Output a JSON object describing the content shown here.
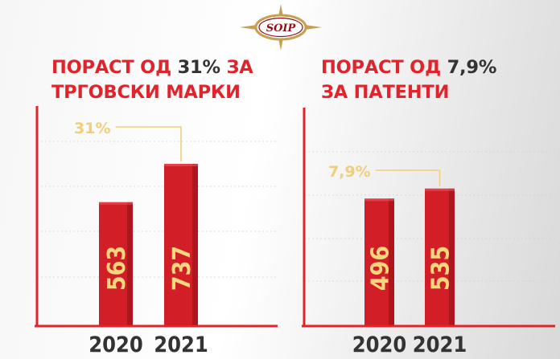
{
  "logo": {
    "text": "SOIP"
  },
  "colors": {
    "accent": "#e1232b",
    "bar": "#d21e26",
    "bar_dark": "#8e1116",
    "annotation": "#f0cf7a",
    "value_label": "#f7d77e",
    "dark_text": "#333333"
  },
  "chart_data": [
    {
      "type": "bar",
      "title": {
        "line1_prefix": "ПОРАСТ ОД ",
        "percent": "31%",
        "line1_suffix": " ЗА",
        "line2": "ТРГОВСКИ МАРКИ"
      },
      "categories": [
        "2020",
        "2021"
      ],
      "values": [
        563,
        737
      ],
      "value_labels": [
        "563",
        "737"
      ],
      "growth_label": "31%",
      "ylim": [
        0,
        1000
      ],
      "grid": true
    },
    {
      "type": "bar",
      "title": {
        "line1_prefix": "ПОРАСТ ОД ",
        "percent": "7,9%",
        "line1_suffix": "",
        "line2": "ЗА ПАТЕНТИ"
      },
      "categories": [
        "2020",
        "2021"
      ],
      "values": [
        496,
        535
      ],
      "value_labels": [
        "496",
        "535"
      ],
      "growth_label": "7,9%",
      "ylim": [
        0,
        850
      ],
      "grid": true
    }
  ]
}
